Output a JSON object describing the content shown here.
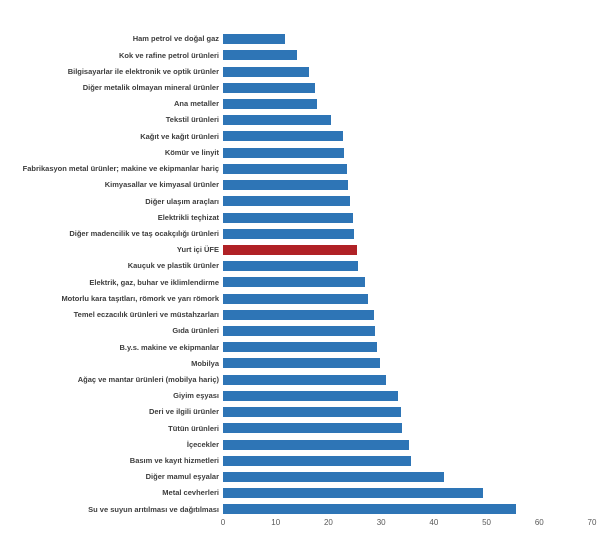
{
  "chart_data": {
    "type": "bar",
    "orientation": "horizontal",
    "title": "",
    "xlabel": "",
    "ylabel": "",
    "xlim": [
      0,
      70
    ],
    "xticks": [
      0,
      10,
      20,
      30,
      40,
      50,
      60,
      70
    ],
    "grid": false,
    "bar_color": "#2E75B6",
    "highlight_color": "#B02126",
    "label_color": "#3D3D3D",
    "tick_color": "#595959",
    "highlight_index": 13,
    "highlight_category": "Yurt içi ÜFE",
    "categories": [
      "Ham petrol ve doğal gaz",
      "Kok ve rafine petrol ürünleri",
      "Bilgisayarlar ile elektronik ve optik ürünler",
      "Diğer metalik olmayan mineral ürünler",
      "Ana metaller",
      "Tekstil ürünleri",
      "Kağıt ve kağıt ürünleri",
      "Kömür ve linyit",
      "Fabrikasyon metal ürünler; makine ve ekipmanlar hariç",
      "Kimyasallar ve kimyasal ürünler",
      "Diğer ulaşım araçları",
      "Elektrikli teçhizat",
      "Diğer madencilik ve taş ocakçılığı ürünleri",
      "Yurt içi ÜFE",
      "Kauçuk ve plastik ürünler",
      "Elektrik, gaz, buhar ve iklimlendirme",
      "Motorlu kara taşıtları, römork ve yarı römork",
      "Temel eczacılık ürünleri ve müstahzarları",
      "Gıda ürünleri",
      "B.y.s. makine ve ekipmanlar",
      "Mobilya",
      "Ağaç ve mantar ürünleri (mobilya hariç)",
      "Giyim eşyası",
      "Deri ve ilgili ürünler",
      "Tütün ürünleri",
      "İçecekler",
      "Basım ve kayıt hizmetleri",
      "Diğer mamul eşyalar",
      "Metal cevherleri",
      "Su ve suyun arıtılması ve dağıtılması"
    ],
    "values": [
      11.8,
      14.1,
      16.3,
      17.5,
      17.9,
      20.5,
      22.8,
      22.9,
      23.5,
      23.7,
      24.1,
      24.7,
      24.9,
      25.4,
      25.6,
      26.9,
      27.6,
      28.7,
      28.8,
      29.3,
      29.8,
      30.9,
      33.2,
      33.8,
      33.9,
      35.3,
      35.6,
      42.0,
      49.3,
      55.6
    ]
  }
}
